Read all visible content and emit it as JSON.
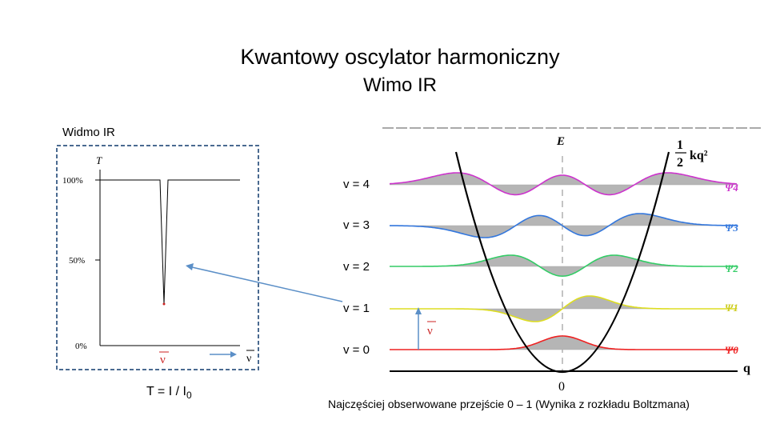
{
  "title": "Kwantowy oscylator harmoniczny",
  "subtitle": "Wimo IR",
  "spectrum": {
    "label": "Widmo IR",
    "axis_label": "T",
    "ticks": [
      "100%",
      "50%",
      "0%"
    ],
    "band_symbol": "ν",
    "axis_symbol": "ν",
    "formula_main": "T = I / I",
    "formula_sub": "0"
  },
  "levels": [
    "v = 4",
    "v = 3",
    "v = 2",
    "v = 1",
    "v = 0"
  ],
  "potential": {
    "energy_label": "E",
    "coordinate_label": "q",
    "origin_label": "0",
    "formula_num": "1",
    "formula_den": "2",
    "formula_rest": "kq²",
    "transition_symbol": "ν",
    "wavefunctions": [
      "Ψ4",
      "Ψ3",
      "Ψ2",
      "Ψ1",
      "Ψ0"
    ],
    "colors": {
      "psi4": "#cc33cc",
      "psi3": "#3377dd",
      "psi2": "#33cc66",
      "psi1": "#dddd22",
      "psi0": "#ee2222"
    }
  },
  "footnote": "Najczęściej obserwowane przejście 0 – 1 (Wynika z rozkładu Boltzmana)"
}
